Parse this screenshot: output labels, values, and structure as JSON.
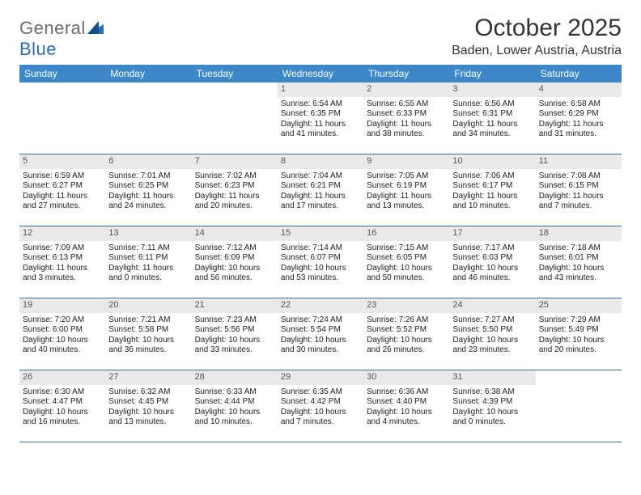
{
  "brand": {
    "word1": "General",
    "word2": "Blue"
  },
  "title": "October 2025",
  "location": "Baden, Lower Austria, Austria",
  "colors": {
    "header_bg": "#3b87c8",
    "header_text": "#ffffff",
    "daynum_bg": "#e9e9e9",
    "daynum_text": "#555555",
    "rule": "#3b6fa3",
    "logo_gray": "#6b6b6b",
    "logo_blue": "#2a6db3"
  },
  "day_labels": [
    "Sunday",
    "Monday",
    "Tuesday",
    "Wednesday",
    "Thursday",
    "Friday",
    "Saturday"
  ],
  "weeks": [
    [
      {
        "blank": true
      },
      {
        "blank": true
      },
      {
        "blank": true
      },
      {
        "n": "1",
        "sr": "6:54 AM",
        "ss": "6:35 PM",
        "dl": "11 hours and 41 minutes."
      },
      {
        "n": "2",
        "sr": "6:55 AM",
        "ss": "6:33 PM",
        "dl": "11 hours and 38 minutes."
      },
      {
        "n": "3",
        "sr": "6:56 AM",
        "ss": "6:31 PM",
        "dl": "11 hours and 34 minutes."
      },
      {
        "n": "4",
        "sr": "6:58 AM",
        "ss": "6:29 PM",
        "dl": "11 hours and 31 minutes."
      }
    ],
    [
      {
        "n": "5",
        "sr": "6:59 AM",
        "ss": "6:27 PM",
        "dl": "11 hours and 27 minutes."
      },
      {
        "n": "6",
        "sr": "7:01 AM",
        "ss": "6:25 PM",
        "dl": "11 hours and 24 minutes."
      },
      {
        "n": "7",
        "sr": "7:02 AM",
        "ss": "6:23 PM",
        "dl": "11 hours and 20 minutes."
      },
      {
        "n": "8",
        "sr": "7:04 AM",
        "ss": "6:21 PM",
        "dl": "11 hours and 17 minutes."
      },
      {
        "n": "9",
        "sr": "7:05 AM",
        "ss": "6:19 PM",
        "dl": "11 hours and 13 minutes."
      },
      {
        "n": "10",
        "sr": "7:06 AM",
        "ss": "6:17 PM",
        "dl": "11 hours and 10 minutes."
      },
      {
        "n": "11",
        "sr": "7:08 AM",
        "ss": "6:15 PM",
        "dl": "11 hours and 7 minutes."
      }
    ],
    [
      {
        "n": "12",
        "sr": "7:09 AM",
        "ss": "6:13 PM",
        "dl": "11 hours and 3 minutes."
      },
      {
        "n": "13",
        "sr": "7:11 AM",
        "ss": "6:11 PM",
        "dl": "11 hours and 0 minutes."
      },
      {
        "n": "14",
        "sr": "7:12 AM",
        "ss": "6:09 PM",
        "dl": "10 hours and 56 minutes."
      },
      {
        "n": "15",
        "sr": "7:14 AM",
        "ss": "6:07 PM",
        "dl": "10 hours and 53 minutes."
      },
      {
        "n": "16",
        "sr": "7:15 AM",
        "ss": "6:05 PM",
        "dl": "10 hours and 50 minutes."
      },
      {
        "n": "17",
        "sr": "7:17 AM",
        "ss": "6:03 PM",
        "dl": "10 hours and 46 minutes."
      },
      {
        "n": "18",
        "sr": "7:18 AM",
        "ss": "6:01 PM",
        "dl": "10 hours and 43 minutes."
      }
    ],
    [
      {
        "n": "19",
        "sr": "7:20 AM",
        "ss": "6:00 PM",
        "dl": "10 hours and 40 minutes."
      },
      {
        "n": "20",
        "sr": "7:21 AM",
        "ss": "5:58 PM",
        "dl": "10 hours and 36 minutes."
      },
      {
        "n": "21",
        "sr": "7:23 AM",
        "ss": "5:56 PM",
        "dl": "10 hours and 33 minutes."
      },
      {
        "n": "22",
        "sr": "7:24 AM",
        "ss": "5:54 PM",
        "dl": "10 hours and 30 minutes."
      },
      {
        "n": "23",
        "sr": "7:26 AM",
        "ss": "5:52 PM",
        "dl": "10 hours and 26 minutes."
      },
      {
        "n": "24",
        "sr": "7:27 AM",
        "ss": "5:50 PM",
        "dl": "10 hours and 23 minutes."
      },
      {
        "n": "25",
        "sr": "7:29 AM",
        "ss": "5:49 PM",
        "dl": "10 hours and 20 minutes."
      }
    ],
    [
      {
        "n": "26",
        "sr": "6:30 AM",
        "ss": "4:47 PM",
        "dl": "10 hours and 16 minutes."
      },
      {
        "n": "27",
        "sr": "6:32 AM",
        "ss": "4:45 PM",
        "dl": "10 hours and 13 minutes."
      },
      {
        "n": "28",
        "sr": "6:33 AM",
        "ss": "4:44 PM",
        "dl": "10 hours and 10 minutes."
      },
      {
        "n": "29",
        "sr": "6:35 AM",
        "ss": "4:42 PM",
        "dl": "10 hours and 7 minutes."
      },
      {
        "n": "30",
        "sr": "6:36 AM",
        "ss": "4:40 PM",
        "dl": "10 hours and 4 minutes."
      },
      {
        "n": "31",
        "sr": "6:38 AM",
        "ss": "4:39 PM",
        "dl": "10 hours and 0 minutes."
      },
      {
        "blank": true
      }
    ]
  ],
  "labels": {
    "sunrise": "Sunrise: ",
    "sunset": "Sunset: ",
    "daylight": "Daylight: "
  }
}
